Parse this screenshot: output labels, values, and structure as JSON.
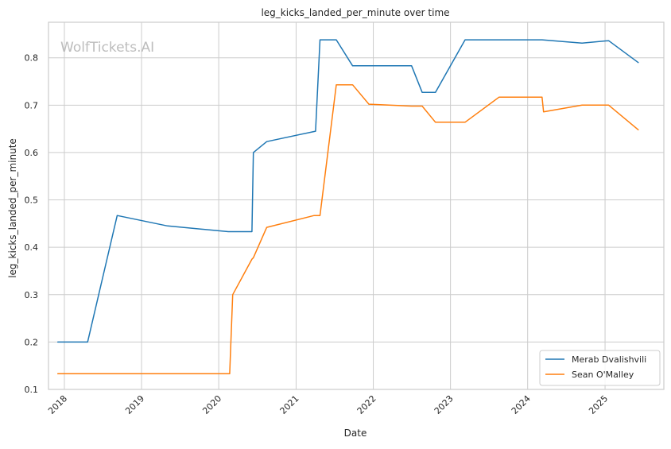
{
  "watermark": "WolfTickets.AI",
  "colors": {
    "background": "#ffffff",
    "grid": "#cccccc",
    "axis": "#cccccc",
    "text": "#262626",
    "watermark": "#bdbdbd"
  },
  "chart_data": {
    "type": "line",
    "title": "leg_kicks_landed_per_minute over time",
    "xlabel": "Date",
    "ylabel": "leg_kicks_landed_per_minute",
    "x_ticks": [
      "2018",
      "2019",
      "2020",
      "2021",
      "2022",
      "2023",
      "2024",
      "2025"
    ],
    "y_ticks": [
      "0.1",
      "0.2",
      "0.3",
      "0.4",
      "0.5",
      "0.6",
      "0.7",
      "0.8"
    ],
    "xlim": [
      "2017-10-18",
      "2025-10-06"
    ],
    "ylim": [
      0.1,
      0.875
    ],
    "grid": true,
    "legend_position": "bottom-right",
    "series": [
      {
        "name": "Merab Dvalishvili",
        "color": "#1f77b4",
        "points": [
          [
            "2017-12-01",
            0.2
          ],
          [
            "2018-04-21",
            0.2
          ],
          [
            "2018-09-08",
            0.467
          ],
          [
            "2019-05-04",
            0.445
          ],
          [
            "2020-02-15",
            0.433
          ],
          [
            "2020-06-06",
            0.433
          ],
          [
            "2020-06-13",
            0.6
          ],
          [
            "2020-08-15",
            0.623
          ],
          [
            "2021-04-03",
            0.645
          ],
          [
            "2021-04-24",
            0.838
          ],
          [
            "2021-07-10",
            0.838
          ],
          [
            "2021-09-25",
            0.783
          ],
          [
            "2022-07-01",
            0.783
          ],
          [
            "2022-08-20",
            0.727
          ],
          [
            "2022-10-22",
            0.727
          ],
          [
            "2023-03-11",
            0.838
          ],
          [
            "2024-03-09",
            0.838
          ],
          [
            "2024-09-14",
            0.831
          ],
          [
            "2025-01-18",
            0.836
          ],
          [
            "2025-06-07",
            0.79
          ]
        ]
      },
      {
        "name": "Sean O'Malley",
        "color": "#ff7f0e",
        "points": [
          [
            "2017-12-01",
            0.133
          ],
          [
            "2020-02-22",
            0.133
          ],
          [
            "2020-03-07",
            0.3
          ],
          [
            "2020-06-06",
            0.375
          ],
          [
            "2020-06-13",
            0.378
          ],
          [
            "2020-08-15",
            0.442
          ],
          [
            "2021-03-27",
            0.467
          ],
          [
            "2021-04-24",
            0.467
          ],
          [
            "2021-07-10",
            0.743
          ],
          [
            "2021-09-25",
            0.743
          ],
          [
            "2021-12-11",
            0.702
          ],
          [
            "2022-07-01",
            0.698
          ],
          [
            "2022-08-20",
            0.698
          ],
          [
            "2022-10-22",
            0.664
          ],
          [
            "2023-03-11",
            0.664
          ],
          [
            "2023-08-19",
            0.717
          ],
          [
            "2024-03-09",
            0.717
          ],
          [
            "2024-03-16",
            0.686
          ],
          [
            "2024-09-14",
            0.7
          ],
          [
            "2025-01-18",
            0.7
          ],
          [
            "2025-06-07",
            0.648
          ]
        ]
      }
    ]
  }
}
